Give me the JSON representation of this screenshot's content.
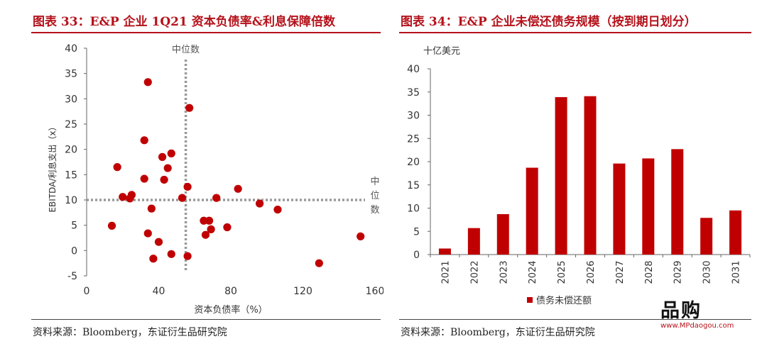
{
  "left": {
    "title": "图表 33：E&P 企业 1Q21 资本负债率&利息保障倍数",
    "source": "资料来源：Bloomberg，东证衍生品研究院",
    "xlabel": "资本负债率（%）",
    "ylabel": "EBITDA/利息支出（x）",
    "median_x_label": "中位数",
    "median_y_label": [
      "中",
      "位",
      "数"
    ]
  },
  "right": {
    "title": "图表 34：E&P 企业未偿还债务规模（按到期日划分）",
    "source": "资料来源：Bloomberg，东证衍生品研究院",
    "unit_label": "十亿美元"
  },
  "watermark": {
    "logo_text": "品购",
    "url": "www.MPdaogou.com"
  },
  "chart_data": [
    {
      "type": "scatter",
      "title": "图表 33：E&P 企业 1Q21 资本负债率&利息保障倍数",
      "xlabel": "资本负债率（%）",
      "ylabel": "EBITDA/利息支出（x）",
      "xlim": [
        0,
        160
      ],
      "ylim": [
        -5,
        40
      ],
      "xticks": [
        0,
        40,
        80,
        120,
        160
      ],
      "yticks": [
        -5,
        0,
        5,
        10,
        15,
        20,
        25,
        30,
        35,
        40
      ],
      "median_x": 55,
      "median_y": 10,
      "color": "#c00000",
      "points": [
        [
          34,
          33.3
        ],
        [
          57,
          28.2
        ],
        [
          32,
          21.8
        ],
        [
          47,
          19.2
        ],
        [
          42,
          18.5
        ],
        [
          17,
          16.5
        ],
        [
          45,
          16.3
        ],
        [
          32,
          14.2
        ],
        [
          43,
          14.0
        ],
        [
          56,
          12.6
        ],
        [
          84,
          12.2
        ],
        [
          25,
          11.0
        ],
        [
          20,
          10.6
        ],
        [
          24,
          10.3
        ],
        [
          72,
          10.4
        ],
        [
          53,
          10.4
        ],
        [
          96,
          9.3
        ],
        [
          36,
          8.3
        ],
        [
          106,
          8.1
        ],
        [
          65,
          5.9
        ],
        [
          68,
          5.9
        ],
        [
          14,
          4.9
        ],
        [
          78,
          4.6
        ],
        [
          69,
          4.2
        ],
        [
          34,
          3.4
        ],
        [
          66,
          3.1
        ],
        [
          152,
          2.8
        ],
        [
          40,
          1.7
        ],
        [
          47,
          -0.7
        ],
        [
          56,
          -1.1
        ],
        [
          37,
          -1.6
        ],
        [
          129,
          -2.5
        ]
      ]
    },
    {
      "type": "bar",
      "title": "图表 34：E&P 企业未偿还债务规模（按到期日划分）",
      "ylabel": "十亿美元",
      "ylim": [
        0,
        40
      ],
      "yticks": [
        0,
        5,
        10,
        15,
        20,
        25,
        30,
        35,
        40
      ],
      "categories": [
        "2021",
        "2022",
        "2023",
        "2024",
        "2025",
        "2026",
        "2027",
        "2028",
        "2029",
        "2030",
        "2031"
      ],
      "series": [
        {
          "name": "债务未偿还额",
          "color": "#c00000",
          "values": [
            1.3,
            5.7,
            8.7,
            18.7,
            33.9,
            34.1,
            19.6,
            20.7,
            22.7,
            7.9,
            9.5
          ]
        }
      ],
      "legend": "bottom-center"
    }
  ]
}
